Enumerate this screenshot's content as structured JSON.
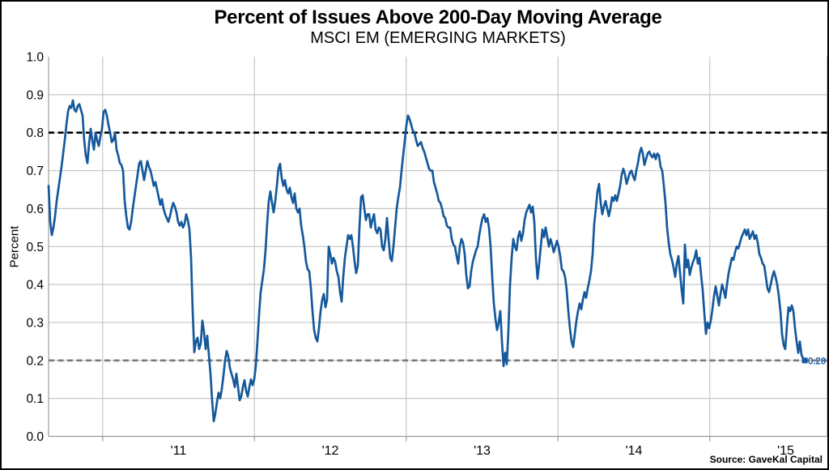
{
  "page": {
    "title": "Percent of Issues Above 200-Day Moving Average",
    "subtitle": "MSCI EM (EMERGING MARKETS)",
    "source": "Source: GaveKal Capital"
  },
  "chart_data": {
    "type": "line",
    "title": "Percent of Issues Above 200-Day Moving Average",
    "subtitle": "MSCI EM (EMERGING MARKETS)",
    "ylabel": "Percent",
    "ylim": [
      0.0,
      1.0
    ],
    "y_tick_labels": [
      "1.0",
      "0.9",
      "0.8",
      "0.7",
      "0.6",
      "0.5",
      "0.4",
      "0.3",
      "0.2",
      "0.1",
      "0.0"
    ],
    "x_tick_labels": [
      "'11",
      "'12",
      "'13",
      "'14",
      "'15"
    ],
    "x_tick_years": [
      2011,
      2012,
      2013,
      2014,
      2015
    ],
    "x_unit": "decimal year (daily series, ~Sep 2010 to ~Aug 2015)",
    "x_start": 2010.644,
    "x_step": 0.010667,
    "grid": true,
    "legend": "none",
    "reference_lines": [
      {
        "name": "upper-threshold",
        "y": 0.8,
        "style": "dashed",
        "color": "#000000"
      },
      {
        "name": "lower-threshold",
        "y": 0.2,
        "style": "dashed",
        "color": "#7a7a7a"
      }
    ],
    "annotations": [
      {
        "text": "0.20",
        "x": 2015.625,
        "y": 0.2,
        "color": "#1f5fa8"
      }
    ],
    "colors": {
      "line": "#15599c",
      "grid": "#c6c6c6",
      "axis": "#9b9b9b"
    },
    "series": [
      {
        "name": "Percent of issues above 200-day moving average",
        "values": [
          0.66,
          0.565,
          0.53,
          0.55,
          0.58,
          0.62,
          0.65,
          0.68,
          0.71,
          0.745,
          0.78,
          0.82,
          0.855,
          0.87,
          0.865,
          0.885,
          0.86,
          0.855,
          0.87,
          0.875,
          0.86,
          0.845,
          0.78,
          0.74,
          0.72,
          0.77,
          0.81,
          0.78,
          0.755,
          0.8,
          0.78,
          0.765,
          0.79,
          0.81,
          0.855,
          0.86,
          0.845,
          0.82,
          0.8,
          0.775,
          0.78,
          0.8,
          0.755,
          0.74,
          0.72,
          0.715,
          0.7,
          0.62,
          0.58,
          0.55,
          0.545,
          0.565,
          0.6,
          0.63,
          0.66,
          0.69,
          0.72,
          0.725,
          0.7,
          0.675,
          0.7,
          0.725,
          0.71,
          0.7,
          0.68,
          0.66,
          0.67,
          0.65,
          0.63,
          0.61,
          0.625,
          0.6,
          0.585,
          0.575,
          0.565,
          0.58,
          0.6,
          0.615,
          0.605,
          0.59,
          0.565,
          0.555,
          0.565,
          0.55,
          0.56,
          0.585,
          0.57,
          0.545,
          0.47,
          0.33,
          0.222,
          0.25,
          0.26,
          0.23,
          0.245,
          0.305,
          0.275,
          0.23,
          0.265,
          0.215,
          0.165,
          0.095,
          0.04,
          0.06,
          0.09,
          0.115,
          0.1,
          0.125,
          0.16,
          0.2,
          0.225,
          0.21,
          0.18,
          0.165,
          0.15,
          0.13,
          0.165,
          0.13,
          0.095,
          0.105,
          0.13,
          0.148,
          0.12,
          0.105,
          0.13,
          0.15,
          0.135,
          0.15,
          0.185,
          0.25,
          0.32,
          0.38,
          0.41,
          0.44,
          0.49,
          0.56,
          0.62,
          0.645,
          0.615,
          0.59,
          0.62,
          0.66,
          0.705,
          0.718,
          0.68,
          0.66,
          0.675,
          0.65,
          0.64,
          0.655,
          0.63,
          0.615,
          0.64,
          0.6,
          0.59,
          0.6,
          0.555,
          0.53,
          0.5,
          0.46,
          0.44,
          0.435,
          0.39,
          0.33,
          0.28,
          0.26,
          0.25,
          0.285,
          0.33,
          0.36,
          0.375,
          0.34,
          0.36,
          0.5,
          0.48,
          0.455,
          0.47,
          0.46,
          0.435,
          0.42,
          0.38,
          0.355,
          0.42,
          0.47,
          0.5,
          0.53,
          0.52,
          0.53,
          0.5,
          0.46,
          0.43,
          0.45,
          0.55,
          0.63,
          0.635,
          0.6,
          0.57,
          0.585,
          0.585,
          0.55,
          0.57,
          0.585,
          0.545,
          0.535,
          0.55,
          0.545,
          0.5,
          0.49,
          0.52,
          0.575,
          0.52,
          0.47,
          0.462,
          0.5,
          0.55,
          0.6,
          0.63,
          0.655,
          0.7,
          0.74,
          0.78,
          0.82,
          0.845,
          0.835,
          0.82,
          0.805,
          0.8,
          0.78,
          0.765,
          0.77,
          0.775,
          0.76,
          0.75,
          0.735,
          0.72,
          0.705,
          0.7,
          0.7,
          0.67,
          0.655,
          0.64,
          0.62,
          0.615,
          0.6,
          0.58,
          0.575,
          0.555,
          0.55,
          0.55,
          0.52,
          0.505,
          0.5,
          0.475,
          0.455,
          0.5,
          0.52,
          0.51,
          0.48,
          0.425,
          0.39,
          0.395,
          0.435,
          0.46,
          0.475,
          0.49,
          0.5,
          0.53,
          0.555,
          0.575,
          0.585,
          0.565,
          0.575,
          0.55,
          0.5,
          0.42,
          0.35,
          0.31,
          0.28,
          0.3,
          0.33,
          0.25,
          0.185,
          0.22,
          0.19,
          0.28,
          0.4,
          0.47,
          0.52,
          0.5,
          0.49,
          0.525,
          0.54,
          0.515,
          0.535,
          0.57,
          0.59,
          0.6,
          0.61,
          0.59,
          0.605,
          0.565,
          0.47,
          0.415,
          0.455,
          0.5,
          0.545,
          0.525,
          0.55,
          0.525,
          0.5,
          0.52,
          0.505,
          0.485,
          0.5,
          0.515,
          0.5,
          0.475,
          0.44,
          0.435,
          0.42,
          0.385,
          0.33,
          0.285,
          0.25,
          0.235,
          0.27,
          0.305,
          0.33,
          0.35,
          0.335,
          0.36,
          0.38,
          0.365,
          0.39,
          0.41,
          0.435,
          0.48,
          0.56,
          0.6,
          0.645,
          0.665,
          0.615,
          0.585,
          0.605,
          0.62,
          0.6,
          0.58,
          0.6,
          0.63,
          0.62,
          0.635,
          0.62,
          0.64,
          0.66,
          0.69,
          0.705,
          0.69,
          0.665,
          0.68,
          0.695,
          0.7,
          0.685,
          0.675,
          0.7,
          0.72,
          0.745,
          0.76,
          0.745,
          0.715,
          0.73,
          0.745,
          0.75,
          0.74,
          0.735,
          0.745,
          0.73,
          0.745,
          0.74,
          0.71,
          0.7,
          0.66,
          0.615,
          0.55,
          0.51,
          0.48,
          0.465,
          0.445,
          0.42,
          0.455,
          0.475,
          0.43,
          0.385,
          0.35,
          0.505,
          0.445,
          0.465,
          0.425,
          0.445,
          0.46,
          0.47,
          0.49,
          0.455,
          0.47,
          0.425,
          0.385,
          0.325,
          0.27,
          0.3,
          0.285,
          0.305,
          0.335,
          0.37,
          0.395,
          0.37,
          0.345,
          0.375,
          0.4,
          0.385,
          0.365,
          0.4,
          0.43,
          0.45,
          0.47,
          0.465,
          0.485,
          0.5,
          0.495,
          0.51,
          0.525,
          0.535,
          0.545,
          0.53,
          0.545,
          0.52,
          0.53,
          0.54,
          0.52,
          0.53,
          0.51,
          0.48,
          0.47,
          0.455,
          0.45,
          0.42,
          0.39,
          0.38,
          0.4,
          0.42,
          0.435,
          0.42,
          0.4,
          0.37,
          0.33,
          0.27,
          0.24,
          0.23,
          0.29,
          0.34,
          0.33,
          0.345,
          0.33,
          0.285,
          0.25,
          0.22,
          0.25,
          0.215,
          0.205,
          0.2
        ]
      }
    ]
  }
}
